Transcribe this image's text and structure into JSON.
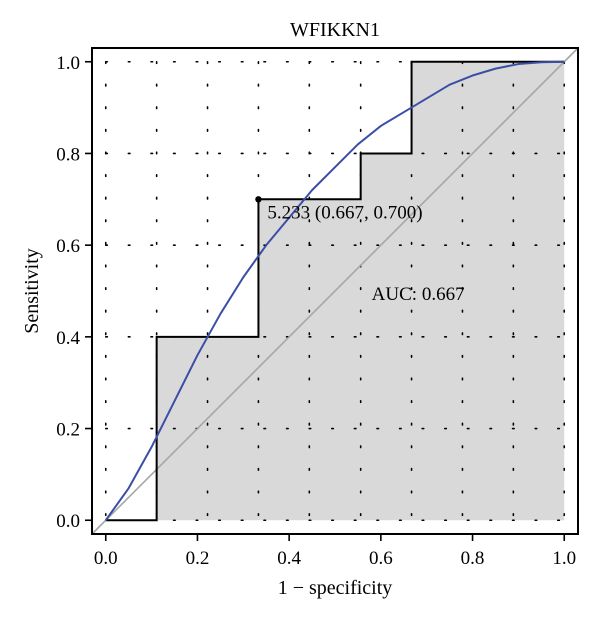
{
  "chart_data": {
    "type": "line",
    "title": "WFIKKN1",
    "xlabel": "1 − specificity",
    "ylabel": "Sensitivity",
    "xlim": [
      -0.03,
      1.03
    ],
    "ylim": [
      -0.03,
      1.03
    ],
    "x_ticks": [
      0.0,
      0.2,
      0.4,
      0.6,
      0.8,
      1.0
    ],
    "y_ticks": [
      0.0,
      0.2,
      0.4,
      0.6,
      0.8,
      1.0
    ],
    "x_tick_labels": [
      "0.0",
      "0.2",
      "0.4",
      "0.6",
      "0.8",
      "1.0"
    ],
    "y_tick_labels": [
      "0.0",
      "0.2",
      "0.4",
      "0.6",
      "0.8",
      "1.0"
    ],
    "grid": "dotted",
    "grid_x": [
      0.0,
      0.111,
      0.222,
      0.333,
      0.444,
      0.556,
      0.667,
      0.778,
      0.889,
      1.0
    ],
    "grid_y": [
      0.0,
      0.2,
      0.4,
      0.6,
      0.8,
      1.0
    ],
    "roc_curve": {
      "x": [
        0.0,
        0.111,
        0.111,
        0.333,
        0.333,
        0.556,
        0.556,
        0.667,
        0.667,
        1.0
      ],
      "y": [
        0.0,
        0.0,
        0.4,
        0.4,
        0.7,
        0.7,
        0.8,
        0.8,
        1.0,
        1.0
      ]
    },
    "smooth_curve": {
      "x": [
        0.0,
        0.05,
        0.1,
        0.15,
        0.2,
        0.25,
        0.3,
        0.35,
        0.4,
        0.45,
        0.5,
        0.55,
        0.6,
        0.65,
        0.7,
        0.75,
        0.8,
        0.85,
        0.9,
        0.95,
        1.0
      ],
      "y": [
        0.0,
        0.07,
        0.16,
        0.26,
        0.36,
        0.45,
        0.53,
        0.6,
        0.66,
        0.72,
        0.77,
        0.82,
        0.86,
        0.89,
        0.92,
        0.95,
        0.97,
        0.985,
        0.995,
        0.999,
        1.0
      ]
    },
    "diagonal": {
      "x": [
        -0.03,
        1.03
      ],
      "y": [
        -0.03,
        1.03
      ]
    },
    "threshold_point": {
      "x": 0.333,
      "y": 0.7,
      "label": "5.233 (0.667, 0.700)"
    },
    "auc_text": "AUC: 0.667",
    "colors": {
      "smooth_curve": "#3b4ea6",
      "roc_fill": "#d9d9d9",
      "diagonal": "#a6a6a6",
      "roc_line": "#000000",
      "grid": "#000000"
    }
  }
}
